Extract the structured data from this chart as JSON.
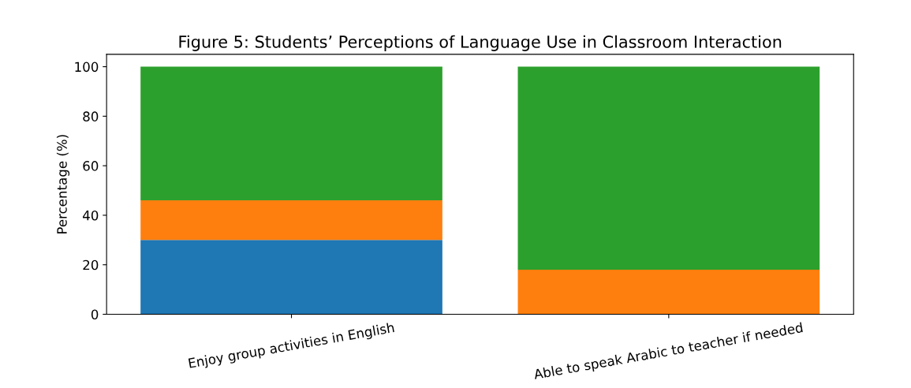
{
  "chart_data": {
    "type": "bar",
    "title": "Figure 5: Students’ Perceptions of Language Use in Classroom Interaction",
    "ylabel": "Percentage (%)",
    "categories": [
      "Enjoy group activities in English",
      "Able to speak Arabic to teacher if needed"
    ],
    "stacked": true,
    "series": [
      {
        "color": "#1f77b4",
        "values": [
          30,
          0
        ]
      },
      {
        "color": "#ff7f0e",
        "values": [
          16,
          18
        ]
      },
      {
        "color": "#2ca02c",
        "values": [
          54,
          82
        ]
      }
    ],
    "ylim": [
      0,
      105
    ],
    "yticks": [
      0,
      20,
      40,
      60,
      80,
      100
    ],
    "grid": false,
    "legend": false
  }
}
